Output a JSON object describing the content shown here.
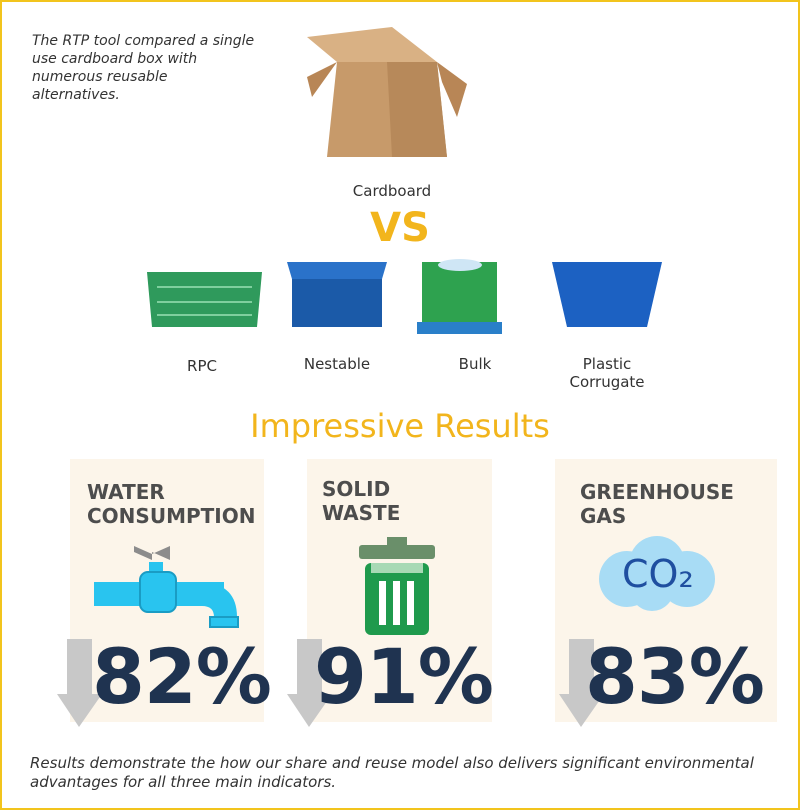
{
  "intro": "The RTP tool compared a single use cardboard box with numerous reusable alternatives.",
  "cardboard_label": "Cardboard",
  "vs": "VS",
  "alternatives": [
    "RPC",
    "Nestable",
    "Bulk",
    "Plastic Corrugate"
  ],
  "results_title": "Impressive Results",
  "results": [
    {
      "title": "WATER CONSUMPTION",
      "value": "82%"
    },
    {
      "title": "SOLID WASTE",
      "value": "91%"
    },
    {
      "title": "GREENHOUSE GAS",
      "value": "83%",
      "icon_text": "CO₂"
    }
  ],
  "footer": "Results demonstrate the how our share and reuse model also delivers significant environmental advantages for all three main indicators."
}
